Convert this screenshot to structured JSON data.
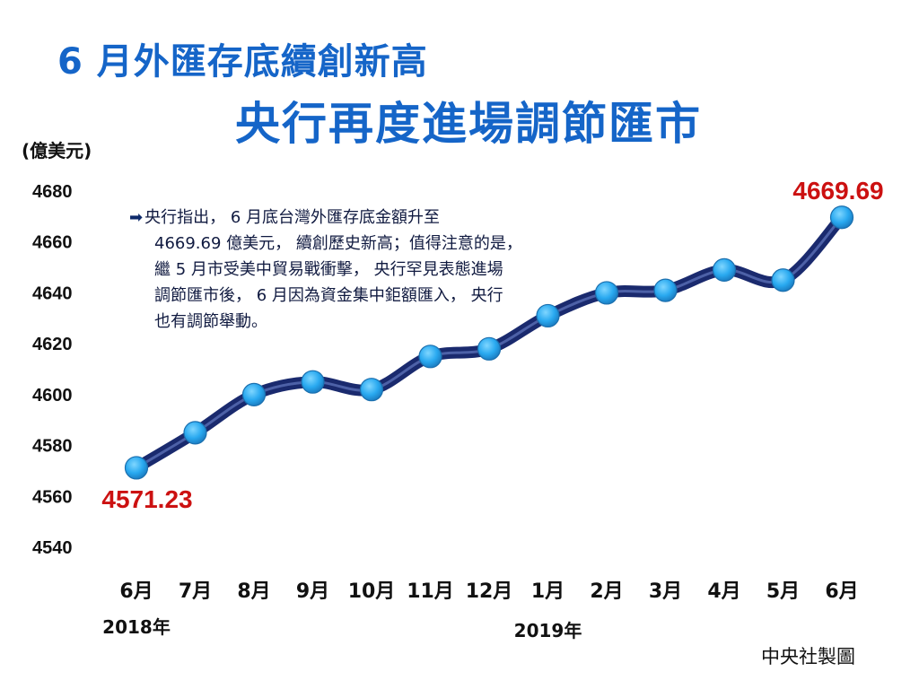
{
  "title_line1": "6 月外匯存底續創新高",
  "title_line2": "央行再度進場調節匯市",
  "note": {
    "lines": [
      "央行指出， 6 月底台灣外匯存底金額升至",
      "4669.69 億美元， 續創歷史新高；值得注意的是，",
      "繼 5 月市受美中貿易戰衝擊， 央行罕見表態進場",
      "調節匯市後， 6 月因為資金集中鉅額匯入， 央行",
      "也有調節舉動。"
    ]
  },
  "credit": "中央社製圖",
  "colors": {
    "title": "#1565c8",
    "line": "#1a2a6e",
    "marker": "#29a9f0",
    "highlight": "#cc1111"
  },
  "chart_data": {
    "type": "line",
    "title": "",
    "ylabel": "(億美元)",
    "xlabel": "",
    "ylim": [
      4540,
      4680
    ],
    "yticks": [
      4680,
      4660,
      4640,
      4620,
      4600,
      4580,
      4560,
      4540
    ],
    "categories": [
      "6月",
      "7月",
      "8月",
      "9月",
      "10月",
      "11月",
      "12月",
      "1月",
      "2月",
      "3月",
      "4月",
      "5月",
      "6月"
    ],
    "year_labels": [
      "2018年",
      "2019年"
    ],
    "series": [
      {
        "values": [
          4571.23,
          4585,
          4600,
          4605,
          4602,
          4615,
          4618,
          4631,
          4640,
          4641,
          4649,
          4645,
          4669.69
        ]
      }
    ],
    "annotations": [
      {
        "text": "4571.23",
        "point_index": 0
      },
      {
        "text": "4669.69",
        "point_index": 12
      }
    ],
    "grid": false,
    "legend": "none"
  }
}
